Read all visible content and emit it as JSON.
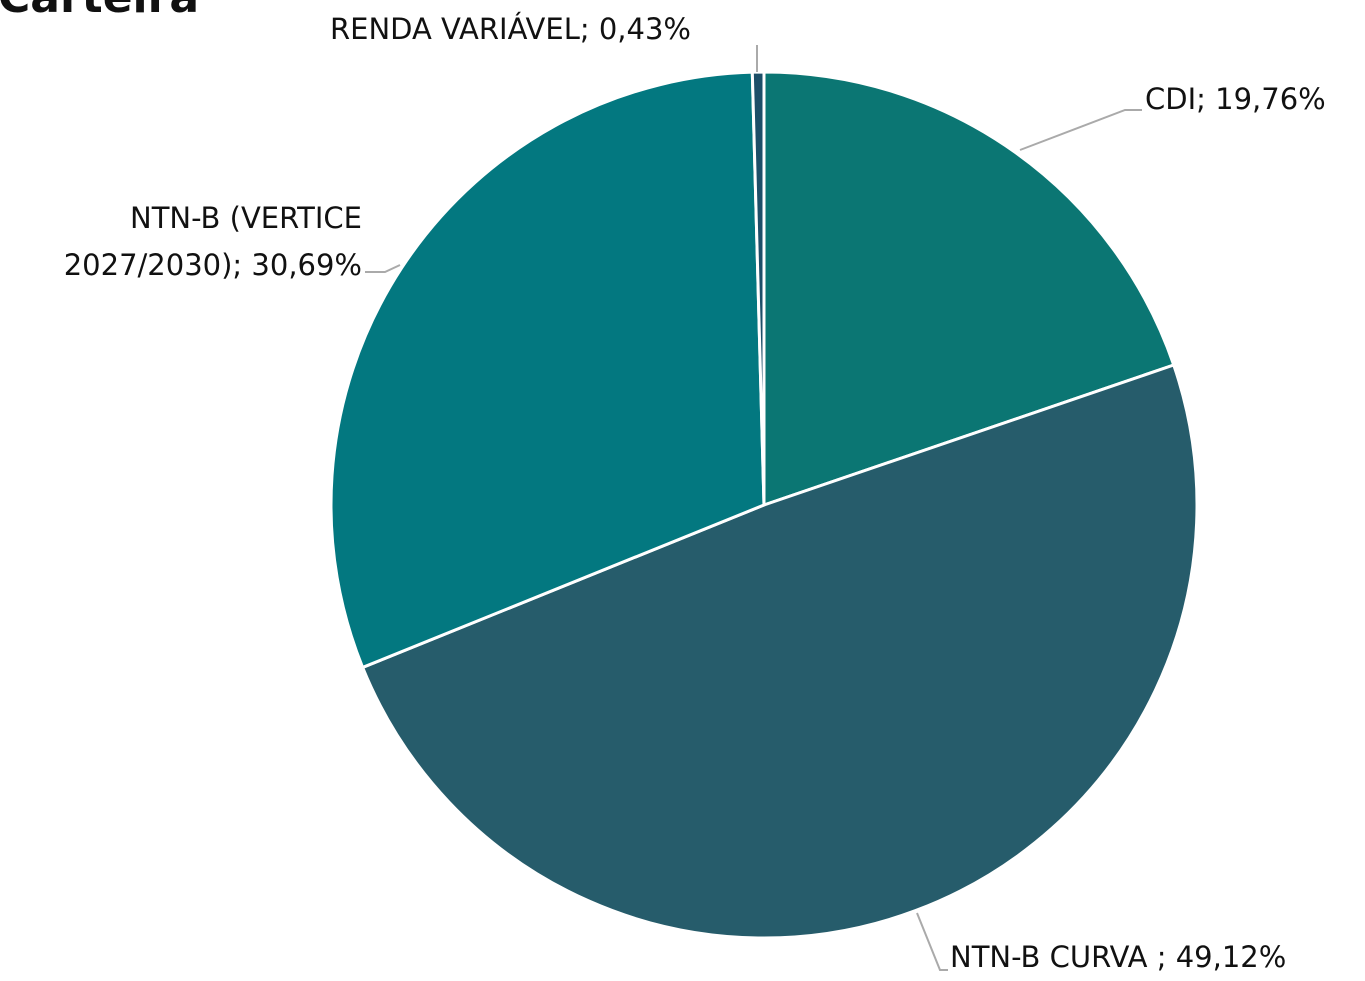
{
  "chart_data": {
    "type": "pie",
    "title": "Carteira",
    "values": [
      19.76,
      49.12,
      30.69,
      0.43
    ],
    "value_labels": [
      "CDI; 19,76%",
      "NTN-B CURVA ; 49,12%",
      "NTN-B (VERTICE 2027/2030); 30,69%",
      "RENDA VARIÁVEL; 0,43%"
    ],
    "colors": [
      "#0b7673",
      "#265c6b",
      "#037880",
      "#1d4f68"
    ]
  }
}
